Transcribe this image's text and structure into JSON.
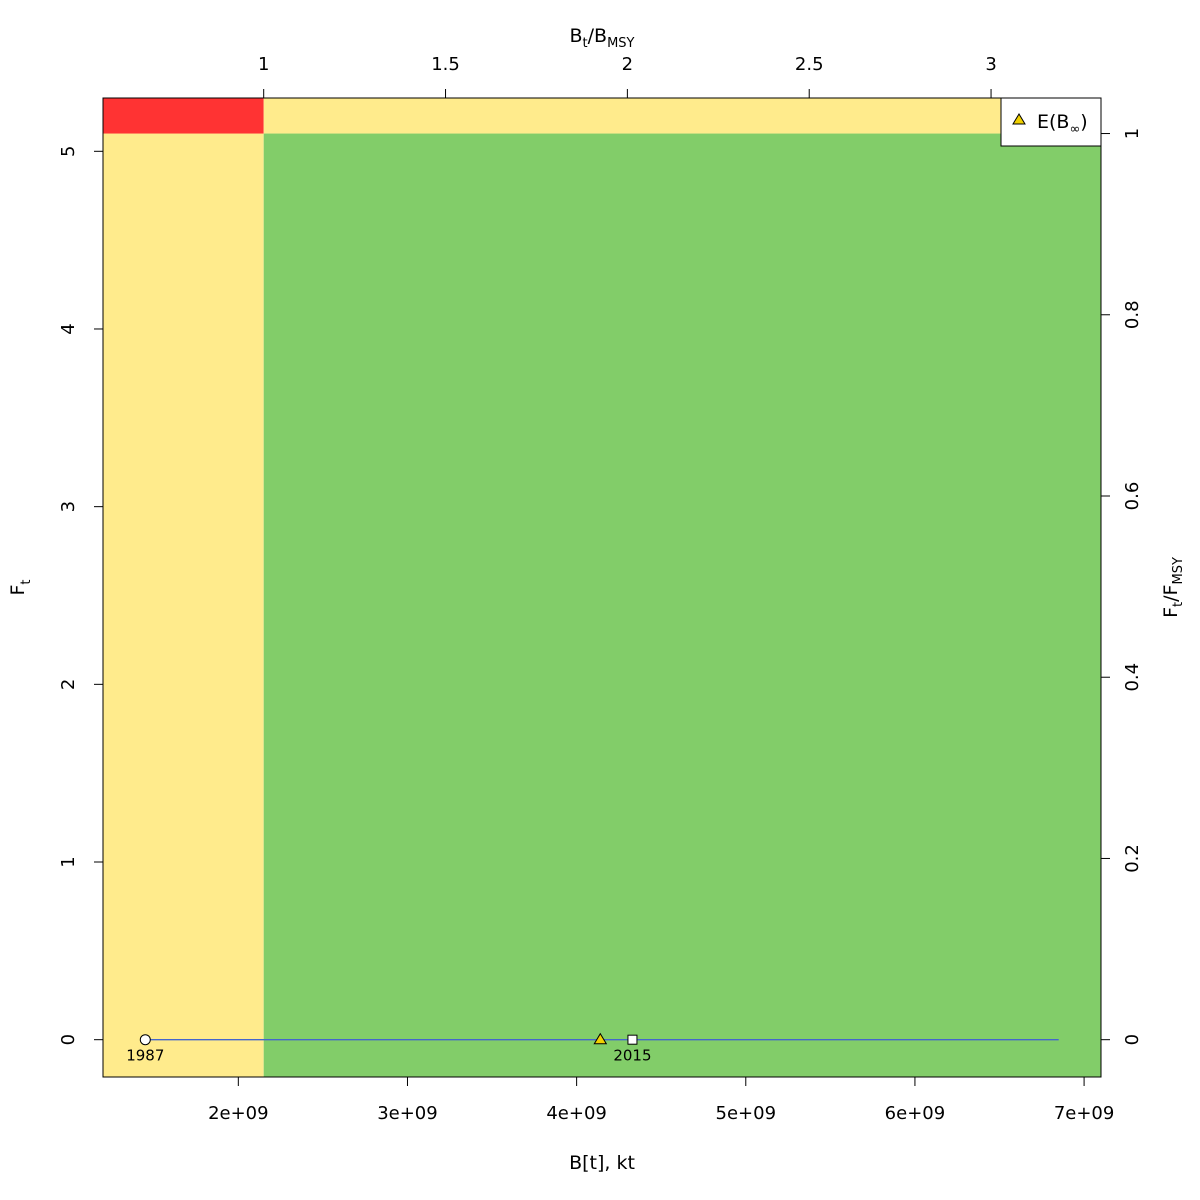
{
  "chart_data": {
    "type": "scatter",
    "bottom_axis": {
      "label": "B[t], kt",
      "ticks": [
        2000000000,
        3000000000,
        4000000000,
        5000000000,
        6000000000,
        7000000000
      ],
      "tick_labels": [
        "2e+09",
        "3e+09",
        "4e+09",
        "5e+09",
        "6e+09",
        "7e+09"
      ],
      "range": [
        1200000000,
        7100000000
      ]
    },
    "left_axis": {
      "label_main": "F",
      "label_sub": "t",
      "ticks": [
        0,
        1,
        2,
        3,
        4,
        5
      ],
      "tick_labels": [
        "0",
        "1",
        "2",
        "3",
        "4",
        "5"
      ],
      "range": [
        -0.21,
        5.3
      ]
    },
    "top_axis": {
      "label_main1": "B",
      "label_sub1": "t",
      "label_sep": "/B",
      "label_sub2": "MSY",
      "ticks": [
        1,
        1.5,
        2,
        2.5,
        3
      ],
      "tick_labels": [
        "1",
        "1.5",
        "2",
        "2.5",
        "3"
      ],
      "bmsy": 2150000000
    },
    "right_axis": {
      "label_main1": "F",
      "label_sub1": "t",
      "label_sep": "/F",
      "label_sub2": "MSY",
      "ticks": [
        0,
        0.2,
        0.4,
        0.6,
        0.8,
        1
      ],
      "tick_labels": [
        "0",
        "0.2",
        "0.4",
        "0.6",
        "0.8",
        "1"
      ],
      "fmsy": 5.1
    },
    "zones": {
      "colors": {
        "red": "#ff3333",
        "yellow": "#ffeb8c",
        "green": "#82cd69"
      }
    },
    "trajectory": {
      "color": "#4466cc",
      "x": [
        1450000000,
        6850000000
      ],
      "y": [
        0,
        0
      ]
    },
    "points": {
      "start": {
        "x": 1450000000,
        "y": 0,
        "label": "1987"
      },
      "end": {
        "x": 4330000000,
        "y": 0,
        "label": "2015"
      },
      "expected": {
        "x": 4140000000,
        "y": 0,
        "color": "#f0d000"
      }
    },
    "legend": {
      "position": "top-right",
      "label_main": "E(B",
      "label_sub": "∞",
      "label_end": ")"
    }
  }
}
